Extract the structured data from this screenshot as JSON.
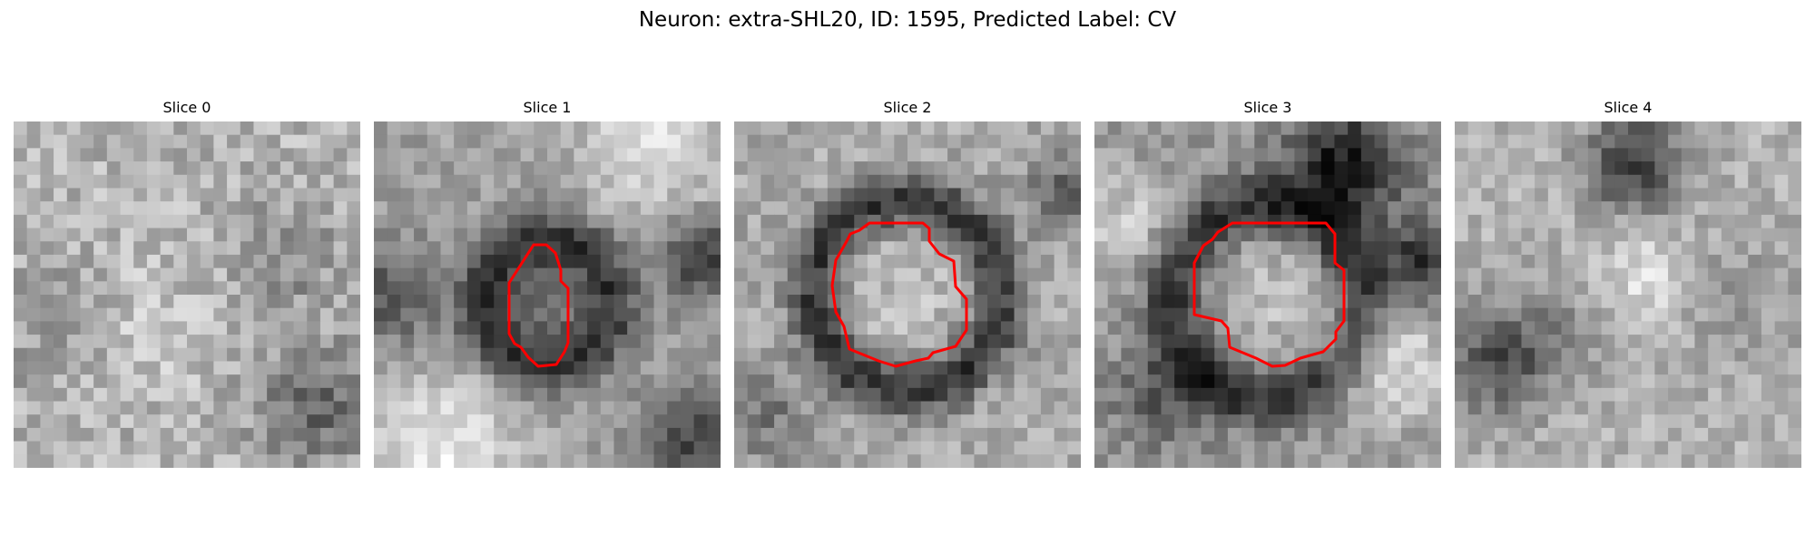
{
  "figure": {
    "title": "Neuron: extra-SHL20, ID: 1595, Predicted Label: CV"
  },
  "contour_color": "#ff0000",
  "panels": [
    {
      "title": "Slice 0",
      "has_contour": false
    },
    {
      "title": "Slice 1",
      "has_contour": true
    },
    {
      "title": "Slice 2",
      "has_contour": true
    },
    {
      "title": "Slice 3",
      "has_contour": true
    },
    {
      "title": "Slice 4",
      "has_contour": false
    }
  ]
}
